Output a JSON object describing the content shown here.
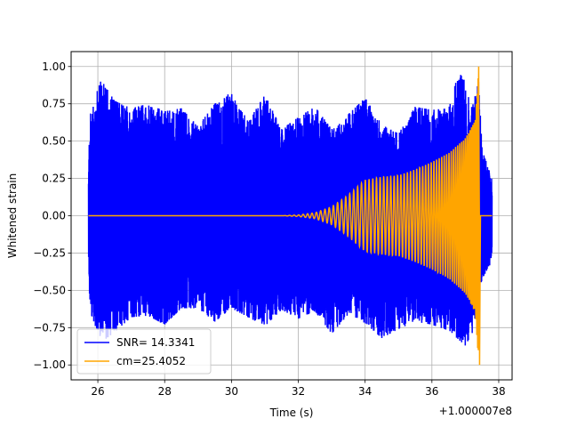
{
  "chart_data": {
    "type": "line",
    "title": "",
    "xlabel": "Time (s)",
    "ylabel": "Whitened strain",
    "offset_label": "+1.000007e8",
    "xlim": [
      25.2,
      38.4
    ],
    "ylim": [
      -1.1,
      1.1
    ],
    "x_ticks": [
      26,
      28,
      30,
      32,
      34,
      36,
      38
    ],
    "x_tick_labels": [
      "26",
      "28",
      "30",
      "32",
      "34",
      "36",
      "38"
    ],
    "y_ticks": [
      -1.0,
      -0.75,
      -0.5,
      -0.25,
      0.0,
      0.25,
      0.5,
      0.75,
      1.0
    ],
    "y_tick_labels": [
      "−1.00",
      "−0.75",
      "−0.50",
      "−0.25",
      "0.00",
      "0.25",
      "0.50",
      "0.75",
      "1.00"
    ],
    "grid": true,
    "legend_position": "lower-left",
    "series": [
      {
        "name": "SNR= 14.3341",
        "color": "#0000ff",
        "kind": "noise",
        "x_range": [
          25.72,
          37.8
        ],
        "upper_envelope": [
          [
            25.72,
            0.25
          ],
          [
            25.75,
            0.65
          ],
          [
            25.8,
            0.72
          ],
          [
            26.1,
            0.91
          ],
          [
            26.5,
            0.77
          ],
          [
            27.0,
            0.72
          ],
          [
            27.5,
            0.75
          ],
          [
            28.0,
            0.7
          ],
          [
            28.5,
            0.72
          ],
          [
            29.0,
            0.6
          ],
          [
            29.5,
            0.75
          ],
          [
            30.0,
            0.83
          ],
          [
            30.5,
            0.63
          ],
          [
            31.0,
            0.81
          ],
          [
            31.5,
            0.58
          ],
          [
            32.0,
            0.66
          ],
          [
            32.5,
            0.73
          ],
          [
            33.0,
            0.58
          ],
          [
            33.5,
            0.68
          ],
          [
            34.0,
            0.79
          ],
          [
            34.5,
            0.61
          ],
          [
            35.0,
            0.55
          ],
          [
            35.5,
            0.73
          ],
          [
            36.0,
            0.71
          ],
          [
            36.5,
            0.72
          ],
          [
            36.85,
            1.0
          ],
          [
            37.2,
            0.72
          ],
          [
            37.4,
            0.9
          ],
          [
            37.5,
            0.45
          ],
          [
            37.7,
            0.31
          ],
          [
            37.8,
            0.25
          ]
        ],
        "lower_envelope": [
          [
            25.72,
            -0.3
          ],
          [
            25.75,
            -0.55
          ],
          [
            25.8,
            -0.66
          ],
          [
            26.1,
            -0.85
          ],
          [
            26.5,
            -0.78
          ],
          [
            27.0,
            -0.68
          ],
          [
            27.5,
            -0.67
          ],
          [
            28.0,
            -0.73
          ],
          [
            28.5,
            -0.62
          ],
          [
            29.0,
            -0.62
          ],
          [
            29.5,
            -0.71
          ],
          [
            30.0,
            -0.62
          ],
          [
            30.5,
            -0.68
          ],
          [
            31.0,
            -0.74
          ],
          [
            31.5,
            -0.63
          ],
          [
            32.0,
            -0.69
          ],
          [
            32.5,
            -0.64
          ],
          [
            33.0,
            -0.79
          ],
          [
            33.5,
            -0.66
          ],
          [
            34.0,
            -0.72
          ],
          [
            34.5,
            -0.82
          ],
          [
            35.0,
            -0.76
          ],
          [
            35.5,
            -0.71
          ],
          [
            36.0,
            -0.73
          ],
          [
            36.5,
            -0.77
          ],
          [
            37.0,
            -0.87
          ],
          [
            37.3,
            -0.75
          ],
          [
            37.5,
            -0.42
          ],
          [
            37.7,
            -0.35
          ],
          [
            37.8,
            -0.3
          ]
        ]
      },
      {
        "name": "cm=25.4052",
        "color": "#ffa500",
        "kind": "chirp",
        "x_range": [
          25.72,
          37.8
        ],
        "merger_time": 37.4,
        "amplitude_envelope": [
          [
            25.72,
            0.0
          ],
          [
            31.5,
            0.0
          ],
          [
            32.0,
            0.005
          ],
          [
            32.5,
            0.02
          ],
          [
            33.0,
            0.06
          ],
          [
            33.5,
            0.14
          ],
          [
            33.8,
            0.2
          ],
          [
            34.0,
            0.24
          ],
          [
            34.5,
            0.26
          ],
          [
            35.0,
            0.27
          ],
          [
            35.5,
            0.31
          ],
          [
            36.0,
            0.36
          ],
          [
            36.5,
            0.42
          ],
          [
            37.0,
            0.52
          ],
          [
            37.3,
            0.65
          ],
          [
            37.4,
            1.0
          ],
          [
            37.42,
            0.0
          ],
          [
            37.8,
            0.0
          ]
        ]
      }
    ]
  }
}
